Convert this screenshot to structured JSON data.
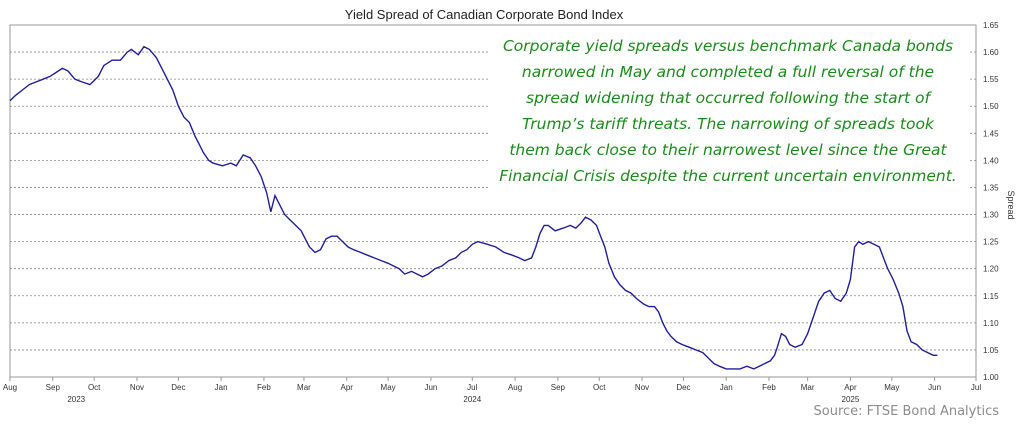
{
  "chart_data": {
    "type": "line",
    "title": "Yield Spread of Canadian Corporate Bond Index",
    "ylabel": "Spread",
    "ylim": [
      1.0,
      1.65
    ],
    "yticks": [
      "1.00",
      "1.05",
      "1.10",
      "1.15",
      "1.20",
      "1.25",
      "1.30",
      "1.35",
      "1.40",
      "1.45",
      "1.50",
      "1.55",
      "1.60",
      "1.65"
    ],
    "xlim": [
      "2023-08-01",
      "2025-07-01"
    ],
    "xticks": [
      {
        "label": "Aug",
        "date": "2023-08-01"
      },
      {
        "label": "Sep",
        "date": "2023-09-01"
      },
      {
        "label": "Oct",
        "date": "2023-10-01"
      },
      {
        "label": "Nov",
        "date": "2023-11-01"
      },
      {
        "label": "Dec",
        "date": "2023-12-01"
      },
      {
        "label": "Jan",
        "date": "2024-01-01"
      },
      {
        "label": "Feb",
        "date": "2024-02-01"
      },
      {
        "label": "Mar",
        "date": "2024-03-01"
      },
      {
        "label": "Apr",
        "date": "2024-04-01"
      },
      {
        "label": "May",
        "date": "2024-05-01"
      },
      {
        "label": "Jun",
        "date": "2024-06-01"
      },
      {
        "label": "Jul",
        "date": "2024-07-01"
      },
      {
        "label": "Aug",
        "date": "2024-08-01"
      },
      {
        "label": "Sep",
        "date": "2024-09-01"
      },
      {
        "label": "Oct",
        "date": "2024-10-01"
      },
      {
        "label": "Nov",
        "date": "2024-11-01"
      },
      {
        "label": "Dec",
        "date": "2024-12-01"
      },
      {
        "label": "Jan",
        "date": "2025-01-01"
      },
      {
        "label": "Feb",
        "date": "2025-02-01"
      },
      {
        "label": "Mar",
        "date": "2025-03-01"
      },
      {
        "label": "Apr",
        "date": "2025-04-01"
      },
      {
        "label": "May",
        "date": "2025-05-01"
      },
      {
        "label": "Jun",
        "date": "2025-06-01"
      },
      {
        "label": "Jul",
        "date": "2025-07-01"
      }
    ],
    "year_labels": [
      {
        "label": "2023",
        "date": "2023-09-18"
      },
      {
        "label": "2024",
        "date": "2024-07-01"
      },
      {
        "label": "2025",
        "date": "2025-04-01"
      }
    ],
    "grid": true,
    "series": [
      {
        "color": "#1f1f9e",
        "points": [
          [
            "2023-08-01",
            1.51
          ],
          [
            "2023-08-05",
            1.52
          ],
          [
            "2023-08-10",
            1.53
          ],
          [
            "2023-08-15",
            1.54
          ],
          [
            "2023-08-20",
            1.545
          ],
          [
            "2023-08-25",
            1.55
          ],
          [
            "2023-08-30",
            1.555
          ],
          [
            "2023-09-05",
            1.565
          ],
          [
            "2023-09-08",
            1.57
          ],
          [
            "2023-09-12",
            1.565
          ],
          [
            "2023-09-17",
            1.55
          ],
          [
            "2023-09-22",
            1.545
          ],
          [
            "2023-09-28",
            1.54
          ],
          [
            "2023-10-04",
            1.555
          ],
          [
            "2023-10-08",
            1.575
          ],
          [
            "2023-10-14",
            1.585
          ],
          [
            "2023-10-20",
            1.585
          ],
          [
            "2023-10-25",
            1.6
          ],
          [
            "2023-10-28",
            1.605
          ],
          [
            "2023-11-02",
            1.595
          ],
          [
            "2023-11-06",
            1.61
          ],
          [
            "2023-11-10",
            1.605
          ],
          [
            "2023-11-15",
            1.59
          ],
          [
            "2023-11-18",
            1.575
          ],
          [
            "2023-11-23",
            1.55
          ],
          [
            "2023-11-27",
            1.53
          ],
          [
            "2023-12-01",
            1.5
          ],
          [
            "2023-12-05",
            1.48
          ],
          [
            "2023-12-09",
            1.47
          ],
          [
            "2023-12-13",
            1.445
          ],
          [
            "2023-12-16",
            1.43
          ],
          [
            "2023-12-19",
            1.415
          ],
          [
            "2023-12-23",
            1.4
          ],
          [
            "2023-12-26",
            1.395
          ],
          [
            "2024-01-02",
            1.39
          ],
          [
            "2024-01-08",
            1.395
          ],
          [
            "2024-01-12",
            1.39
          ],
          [
            "2024-01-17",
            1.41
          ],
          [
            "2024-01-22",
            1.405
          ],
          [
            "2024-01-26",
            1.39
          ],
          [
            "2024-01-30",
            1.37
          ],
          [
            "2024-02-03",
            1.34
          ],
          [
            "2024-02-06",
            1.305
          ],
          [
            "2024-02-09",
            1.335
          ],
          [
            "2024-02-12",
            1.32
          ],
          [
            "2024-02-16",
            1.3
          ],
          [
            "2024-02-20",
            1.29
          ],
          [
            "2024-02-24",
            1.28
          ],
          [
            "2024-02-28",
            1.27
          ],
          [
            "2024-03-02",
            1.255
          ],
          [
            "2024-03-05",
            1.24
          ],
          [
            "2024-03-09",
            1.23
          ],
          [
            "2024-03-13",
            1.235
          ],
          [
            "2024-03-17",
            1.255
          ],
          [
            "2024-03-21",
            1.26
          ],
          [
            "2024-03-25",
            1.26
          ],
          [
            "2024-03-29",
            1.25
          ],
          [
            "2024-04-02",
            1.24
          ],
          [
            "2024-04-06",
            1.235
          ],
          [
            "2024-04-11",
            1.23
          ],
          [
            "2024-04-16",
            1.225
          ],
          [
            "2024-04-21",
            1.22
          ],
          [
            "2024-04-26",
            1.215
          ],
          [
            "2024-05-01",
            1.21
          ],
          [
            "2024-05-05",
            1.205
          ],
          [
            "2024-05-09",
            1.2
          ],
          [
            "2024-05-13",
            1.19
          ],
          [
            "2024-05-18",
            1.195
          ],
          [
            "2024-05-22",
            1.19
          ],
          [
            "2024-05-26",
            1.185
          ],
          [
            "2024-05-30",
            1.19
          ],
          [
            "2024-06-04",
            1.2
          ],
          [
            "2024-06-09",
            1.205
          ],
          [
            "2024-06-14",
            1.215
          ],
          [
            "2024-06-19",
            1.22
          ],
          [
            "2024-06-23",
            1.23
          ],
          [
            "2024-06-27",
            1.235
          ],
          [
            "2024-07-01",
            1.245
          ],
          [
            "2024-07-05",
            1.25
          ],
          [
            "2024-07-12",
            1.245
          ],
          [
            "2024-07-18",
            1.24
          ],
          [
            "2024-07-24",
            1.23
          ],
          [
            "2024-07-30",
            1.225
          ],
          [
            "2024-08-04",
            1.22
          ],
          [
            "2024-08-08",
            1.215
          ],
          [
            "2024-08-13",
            1.22
          ],
          [
            "2024-08-16",
            1.24
          ],
          [
            "2024-08-19",
            1.265
          ],
          [
            "2024-08-22",
            1.28
          ],
          [
            "2024-08-25",
            1.28
          ],
          [
            "2024-08-30",
            1.27
          ],
          [
            "2024-09-05",
            1.275
          ],
          [
            "2024-09-10",
            1.28
          ],
          [
            "2024-09-14",
            1.275
          ],
          [
            "2024-09-18",
            1.285
          ],
          [
            "2024-09-21",
            1.295
          ],
          [
            "2024-09-25",
            1.29
          ],
          [
            "2024-09-29",
            1.28
          ],
          [
            "2024-10-02",
            1.26
          ],
          [
            "2024-10-05",
            1.24
          ],
          [
            "2024-10-08",
            1.21
          ],
          [
            "2024-10-12",
            1.185
          ],
          [
            "2024-10-16",
            1.17
          ],
          [
            "2024-10-20",
            1.16
          ],
          [
            "2024-10-24",
            1.155
          ],
          [
            "2024-10-28",
            1.145
          ],
          [
            "2024-11-02",
            1.135
          ],
          [
            "2024-11-06",
            1.13
          ],
          [
            "2024-11-10",
            1.13
          ],
          [
            "2024-11-13",
            1.12
          ],
          [
            "2024-11-16",
            1.1
          ],
          [
            "2024-11-19",
            1.085
          ],
          [
            "2024-11-22",
            1.075
          ],
          [
            "2024-11-26",
            1.065
          ],
          [
            "2024-11-30",
            1.06
          ],
          [
            "2024-12-05",
            1.055
          ],
          [
            "2024-12-10",
            1.05
          ],
          [
            "2024-12-15",
            1.045
          ],
          [
            "2024-12-19",
            1.035
          ],
          [
            "2024-12-23",
            1.025
          ],
          [
            "2024-12-27",
            1.02
          ],
          [
            "2025-01-01",
            1.015
          ],
          [
            "2025-01-06",
            1.015
          ],
          [
            "2025-01-11",
            1.015
          ],
          [
            "2025-01-16",
            1.02
          ],
          [
            "2025-01-21",
            1.015
          ],
          [
            "2025-01-25",
            1.02
          ],
          [
            "2025-01-29",
            1.025
          ],
          [
            "2025-02-02",
            1.03
          ],
          [
            "2025-02-05",
            1.04
          ],
          [
            "2025-02-07",
            1.055
          ],
          [
            "2025-02-10",
            1.08
          ],
          [
            "2025-02-13",
            1.075
          ],
          [
            "2025-02-16",
            1.06
          ],
          [
            "2025-02-20",
            1.055
          ],
          [
            "2025-02-25",
            1.06
          ],
          [
            "2025-03-01",
            1.08
          ],
          [
            "2025-03-05",
            1.11
          ],
          [
            "2025-03-09",
            1.14
          ],
          [
            "2025-03-13",
            1.155
          ],
          [
            "2025-03-17",
            1.16
          ],
          [
            "2025-03-21",
            1.145
          ],
          [
            "2025-03-25",
            1.14
          ],
          [
            "2025-03-29",
            1.155
          ],
          [
            "2025-04-01",
            1.18
          ],
          [
            "2025-04-04",
            1.24
          ],
          [
            "2025-04-07",
            1.25
          ],
          [
            "2025-04-10",
            1.245
          ],
          [
            "2025-04-14",
            1.25
          ],
          [
            "2025-04-18",
            1.245
          ],
          [
            "2025-04-22",
            1.24
          ],
          [
            "2025-04-25",
            1.22
          ],
          [
            "2025-04-28",
            1.2
          ],
          [
            "2025-05-02",
            1.18
          ],
          [
            "2025-05-06",
            1.155
          ],
          [
            "2025-05-09",
            1.13
          ],
          [
            "2025-05-12",
            1.085
          ],
          [
            "2025-05-15",
            1.065
          ],
          [
            "2025-05-19",
            1.06
          ],
          [
            "2025-05-23",
            1.05
          ],
          [
            "2025-05-27",
            1.045
          ],
          [
            "2025-05-31",
            1.04
          ],
          [
            "2025-06-03",
            1.04
          ]
        ]
      }
    ]
  },
  "annotation": {
    "lines": [
      "Corporate yield spreads versus benchmark Canada bonds",
      "narrowed in May and completed a full reversal of the",
      "spread widening that occurred following the start of",
      "Trump’s tariff threats. The narrowing of spreads took",
      "them back close to their narrowest level since the Great",
      "Financial Crisis despite the current uncertain environment."
    ]
  },
  "source": "Source: FTSE Bond Analytics"
}
